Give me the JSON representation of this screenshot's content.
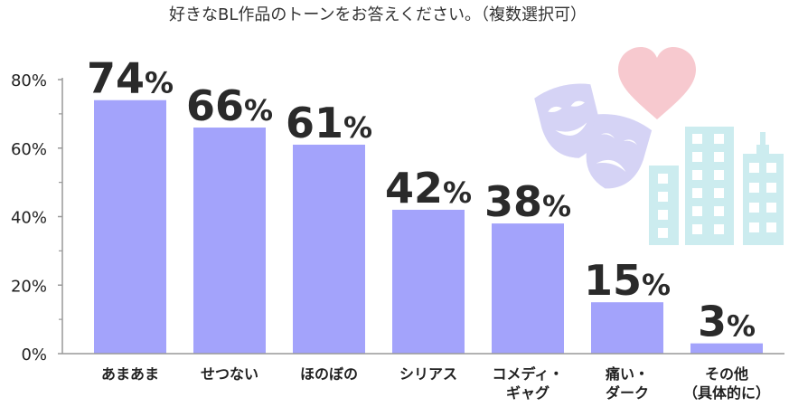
{
  "colors": {
    "bar": "#a3a3fb",
    "axis": "#999999",
    "heart": "#f7c9cf",
    "masks": "#d5d3f5",
    "buildings": "#ccecef",
    "windows": "#ffffff"
  },
  "icons": [
    "heart-icon",
    "theater-masks-icon",
    "city-buildings-icon"
  ],
  "chart_data": {
    "type": "bar",
    "title": "好きなBL作品のトーンをお答えください。（複数選択可）",
    "xlabel": "",
    "ylabel": "",
    "ylim": [
      0,
      80
    ],
    "yticks": [
      "0%",
      "20%",
      "40%",
      "60%",
      "80%"
    ],
    "grid": false,
    "legend": "none",
    "categories": [
      [
        "あまあま"
      ],
      [
        "せつない"
      ],
      [
        "ほのぼの"
      ],
      [
        "シリアス"
      ],
      [
        "コメディ・",
        "ギャグ"
      ],
      [
        "痛い・",
        "ダーク"
      ],
      [
        "その他",
        "（具体的に）"
      ]
    ],
    "values": [
      74,
      66,
      61,
      42,
      38,
      15,
      3
    ],
    "value_labels": [
      "74%",
      "66%",
      "61%",
      "42%",
      "38%",
      "15%",
      "3%"
    ]
  }
}
